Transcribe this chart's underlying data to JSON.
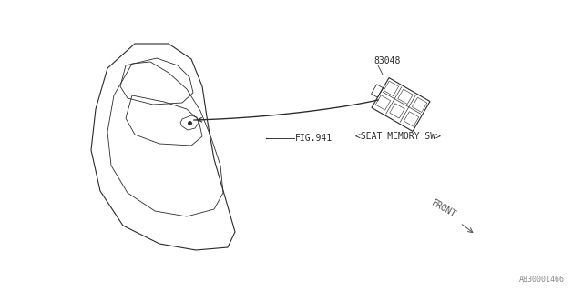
{
  "bg_color": "#ffffff",
  "line_color": "#2a2a2a",
  "part_number": "83048",
  "label_seat_memory": "<SEAT MEMORY SW>",
  "label_fig": "FIG.941",
  "label_front": "FRONT",
  "diagram_id": "A830001466",
  "font_size_small": 7,
  "font_size_part": 7,
  "font_size_id": 6
}
